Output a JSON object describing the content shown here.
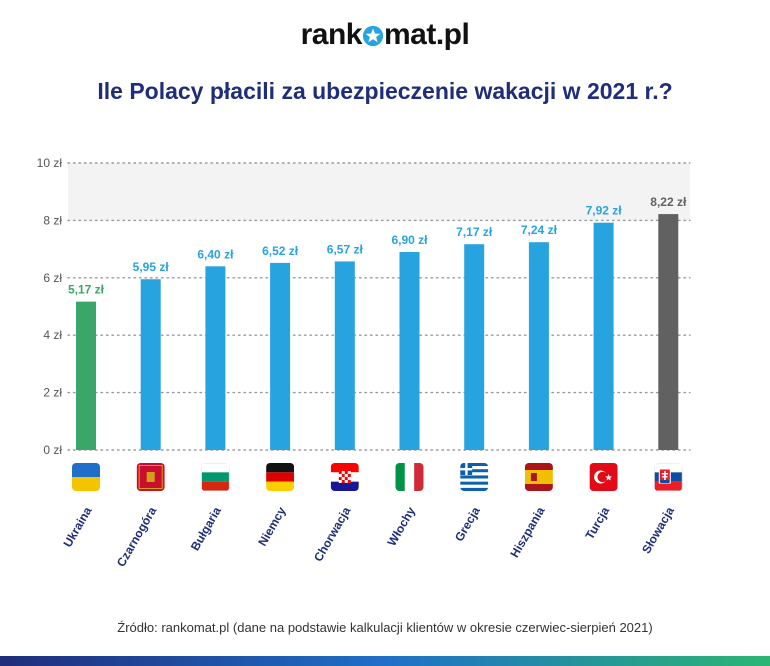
{
  "logo": {
    "left": "rank",
    "right": "mat.pl"
  },
  "colors": {
    "ukraine_bar": "#3aa66a",
    "default_bar": "#27a3df",
    "slovakia_bar": "#616161",
    "title": "#1f2d7a"
  },
  "chart_data": {
    "type": "bar",
    "title": "Ile Polacy płacili za ubezpieczenie wakacji w 2021 r.?",
    "categories": [
      "Ukraina",
      "Czarnogóra",
      "Bułgaria",
      "Niemcy",
      "Chorwacja",
      "Włochy",
      "Grecja",
      "Hiszpania",
      "Turcja",
      "Słowacja"
    ],
    "values": [
      5.17,
      5.95,
      6.4,
      6.52,
      6.57,
      6.9,
      7.17,
      7.24,
      7.92,
      8.22
    ],
    "value_labels": [
      "5,17 zł",
      "5,95 zł",
      "6,40 zł",
      "6,52 zł",
      "6,57 zł",
      "6,90 zł",
      "7,17 zł",
      "7,24 zł",
      "7,92 zł",
      "8,22 zł"
    ],
    "flags": [
      "ukraine-flag",
      "montenegro-flag",
      "bulgaria-flag",
      "germany-flag",
      "croatia-flag",
      "italy-flag",
      "greece-flag",
      "spain-flag",
      "turkey-flag",
      "slovakia-flag"
    ],
    "yticks": [
      0,
      2,
      4,
      6,
      8,
      10
    ],
    "ytick_labels": [
      "0 zł",
      "2 zł",
      "4 zł",
      "6 zł",
      "8 zł",
      "10 zł"
    ],
    "ylim": [
      0,
      10
    ],
    "grid": "dotted horizontal",
    "xlabel": "",
    "ylabel": ""
  },
  "source": "Źródło: rankomat.pl (dane na podstawie kalkulacji klientów w okresie czerwiec-sierpień 2021)"
}
